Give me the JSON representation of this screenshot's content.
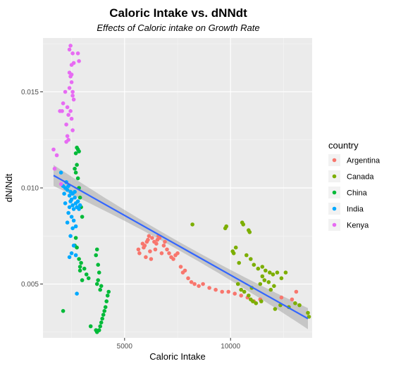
{
  "chart_data": {
    "type": "scatter",
    "title": "Caloric Intake vs. dNNdt",
    "subtitle": "Effects of Caloric intake on Growth Rate",
    "xlabel": "Caloric Intake",
    "ylabel": "dN/Ndt",
    "xlim": [
      1150,
      13850
    ],
    "ylim": [
      0.0022,
      0.0178
    ],
    "x_ticks": [
      5000,
      10000
    ],
    "x_tick_labels": [
      "5000",
      "10000"
    ],
    "y_ticks": [
      0.005,
      0.01,
      0.015
    ],
    "y_tick_labels": [
      "0.005",
      "0.010",
      "0.015"
    ],
    "grid": true,
    "legend": {
      "title": "country",
      "position": "right"
    },
    "trend_line": {
      "color": "#3366FF",
      "band_color": "#999999",
      "points": [
        [
          1650,
          0.01065
        ],
        [
          13650,
          0.0032
        ]
      ],
      "band_half_width_ends": 0.00055,
      "band_half_width_middle": 0.00022
    },
    "series": [
      {
        "name": "Argentina",
        "color": "#F8766D",
        "points": [
          [
            5650,
            0.0068
          ],
          [
            5700,
            0.0066
          ],
          [
            5850,
            0.0071
          ],
          [
            5900,
            0.0069
          ],
          [
            5950,
            0.007
          ],
          [
            6000,
            0.0064
          ],
          [
            6050,
            0.0072
          ],
          [
            6100,
            0.0073
          ],
          [
            6150,
            0.0075
          ],
          [
            6200,
            0.0067
          ],
          [
            6250,
            0.0063
          ],
          [
            6300,
            0.0074
          ],
          [
            6400,
            0.0072
          ],
          [
            6450,
            0.0068
          ],
          [
            6500,
            0.0071
          ],
          [
            6550,
            0.0073
          ],
          [
            6600,
            0.0075
          ],
          [
            6650,
            0.0074
          ],
          [
            6750,
            0.0066
          ],
          [
            6850,
            0.007
          ],
          [
            6900,
            0.0072
          ],
          [
            7000,
            0.0068
          ],
          [
            7100,
            0.0066
          ],
          [
            7200,
            0.0064
          ],
          [
            7300,
            0.0063
          ],
          [
            7400,
            0.0065
          ],
          [
            7500,
            0.0066
          ],
          [
            7650,
            0.0059
          ],
          [
            7750,
            0.0056
          ],
          [
            7850,
            0.0057
          ],
          [
            8000,
            0.0053
          ],
          [
            8150,
            0.0051
          ],
          [
            8300,
            0.005
          ],
          [
            8500,
            0.0049
          ],
          [
            8700,
            0.005
          ],
          [
            9000,
            0.0048
          ],
          [
            9300,
            0.0047
          ],
          [
            9600,
            0.0046
          ],
          [
            9900,
            0.0046
          ],
          [
            10200,
            0.0045
          ],
          [
            10500,
            0.0044
          ],
          [
            10800,
            0.0043
          ],
          [
            11100,
            0.0041
          ],
          [
            11400,
            0.0042
          ],
          [
            12400,
            0.0043
          ],
          [
            12900,
            0.0042
          ],
          [
            13100,
            0.0046
          ]
        ]
      },
      {
        "name": "Canada",
        "color": "#7CAE00",
        "points": [
          [
            8200,
            0.0081
          ],
          [
            9750,
            0.0079
          ],
          [
            9800,
            0.008
          ],
          [
            10550,
            0.0082
          ],
          [
            10600,
            0.0081
          ],
          [
            10850,
            0.0078
          ],
          [
            10900,
            0.0077
          ],
          [
            10250,
            0.0069
          ],
          [
            10100,
            0.0067
          ],
          [
            10150,
            0.0066
          ],
          [
            10400,
            0.0061
          ],
          [
            10750,
            0.0065
          ],
          [
            10950,
            0.0063
          ],
          [
            11100,
            0.006
          ],
          [
            11300,
            0.0058
          ],
          [
            11500,
            0.0059
          ],
          [
            11650,
            0.0057
          ],
          [
            11850,
            0.0056
          ],
          [
            12000,
            0.0055
          ],
          [
            12200,
            0.0056
          ],
          [
            12400,
            0.0053
          ],
          [
            12600,
            0.0056
          ],
          [
            11500,
            0.0054
          ],
          [
            11600,
            0.0052
          ],
          [
            11800,
            0.0051
          ],
          [
            12050,
            0.0049
          ],
          [
            10950,
            0.0042
          ],
          [
            11050,
            0.0041
          ],
          [
            11200,
            0.004
          ],
          [
            11450,
            0.0041
          ],
          [
            12100,
            0.0037
          ],
          [
            12350,
            0.0039
          ],
          [
            12750,
            0.0038
          ],
          [
            13050,
            0.004
          ],
          [
            13250,
            0.0039
          ],
          [
            13650,
            0.0035
          ],
          [
            13700,
            0.0033
          ],
          [
            11000,
            0.0048
          ],
          [
            11400,
            0.005
          ],
          [
            10350,
            0.005
          ],
          [
            10500,
            0.0047
          ],
          [
            10650,
            0.0046
          ],
          [
            10850,
            0.0044
          ],
          [
            11900,
            0.0047
          ]
        ]
      },
      {
        "name": "China",
        "color": "#00BA38",
        "points": [
          [
            2100,
            0.0036
          ],
          [
            2700,
            0.0118
          ],
          [
            2750,
            0.0121
          ],
          [
            2800,
            0.012
          ],
          [
            2850,
            0.0119
          ],
          [
            2650,
            0.011
          ],
          [
            2700,
            0.0108
          ],
          [
            2750,
            0.0112
          ],
          [
            2800,
            0.0105
          ],
          [
            2850,
            0.01
          ],
          [
            2900,
            0.0095
          ],
          [
            2950,
            0.009
          ],
          [
            3000,
            0.0085
          ],
          [
            2650,
            0.007
          ],
          [
            2700,
            0.0074
          ],
          [
            2750,
            0.0069
          ],
          [
            2850,
            0.0063
          ],
          [
            2900,
            0.0059
          ],
          [
            2950,
            0.0061
          ],
          [
            3100,
            0.0058
          ],
          [
            3200,
            0.0055
          ],
          [
            3300,
            0.0053
          ],
          [
            3000,
            0.0052
          ],
          [
            2900,
            0.0057
          ],
          [
            3400,
            0.0028
          ],
          [
            3650,
            0.0026
          ],
          [
            3700,
            0.0025
          ],
          [
            3800,
            0.0026
          ],
          [
            3850,
            0.0028
          ],
          [
            3900,
            0.003
          ],
          [
            3950,
            0.0032
          ],
          [
            4000,
            0.0034
          ],
          [
            4050,
            0.0036
          ],
          [
            4100,
            0.0038
          ],
          [
            4150,
            0.0041
          ],
          [
            4200,
            0.0044
          ],
          [
            4250,
            0.0046
          ],
          [
            3700,
            0.005
          ],
          [
            3750,
            0.0052
          ],
          [
            3800,
            0.0056
          ],
          [
            3750,
            0.006
          ],
          [
            3650,
            0.0065
          ],
          [
            3700,
            0.0068
          ],
          [
            3850,
            0.0047
          ],
          [
            3900,
            0.0049
          ]
        ]
      },
      {
        "name": "India",
        "color": "#00A9FF",
        "points": [
          [
            2000,
            0.0108
          ],
          [
            2100,
            0.0101
          ],
          [
            2150,
            0.0097
          ],
          [
            2200,
            0.01
          ],
          [
            2250,
            0.0103
          ],
          [
            2300,
            0.0099
          ],
          [
            2350,
            0.0101
          ],
          [
            2400,
            0.0096
          ],
          [
            2450,
            0.0093
          ],
          [
            2500,
            0.0094
          ],
          [
            2550,
            0.0091
          ],
          [
            2600,
            0.0089
          ],
          [
            2650,
            0.0095
          ],
          [
            2700,
            0.0092
          ],
          [
            2750,
            0.009
          ],
          [
            2800,
            0.0093
          ],
          [
            2850,
            0.0089
          ],
          [
            2900,
            0.0091
          ],
          [
            2400,
            0.009
          ],
          [
            2350,
            0.0087
          ],
          [
            2500,
            0.0085
          ],
          [
            2600,
            0.0083
          ],
          [
            2550,
            0.0079
          ],
          [
            2300,
            0.0082
          ],
          [
            2700,
            0.008
          ],
          [
            2450,
            0.0075
          ],
          [
            2500,
            0.0066
          ],
          [
            2600,
            0.007
          ],
          [
            2400,
            0.0064
          ],
          [
            2700,
            0.0065
          ],
          [
            2750,
            0.0045
          ],
          [
            2200,
            0.0092
          ],
          [
            2650,
            0.0098
          ],
          [
            2550,
            0.0097
          ],
          [
            2450,
            0.0098
          ]
        ]
      },
      {
        "name": "Kenya",
        "color": "#E76BF3",
        "points": [
          [
            1650,
            0.012
          ],
          [
            1800,
            0.0117
          ],
          [
            1700,
            0.011
          ],
          [
            2000,
            0.0102
          ],
          [
            1950,
            0.014
          ],
          [
            2050,
            0.014
          ],
          [
            2100,
            0.0144
          ],
          [
            2200,
            0.015
          ],
          [
            2250,
            0.0133
          ],
          [
            2300,
            0.0142
          ],
          [
            2350,
            0.0138
          ],
          [
            2400,
            0.0152
          ],
          [
            2450,
            0.0158
          ],
          [
            2500,
            0.0164
          ],
          [
            2400,
            0.0172
          ],
          [
            2450,
            0.0174
          ],
          [
            2550,
            0.017
          ],
          [
            2600,
            0.0165
          ],
          [
            2500,
            0.0159
          ],
          [
            2550,
            0.015
          ],
          [
            2600,
            0.0146
          ],
          [
            2450,
            0.014
          ],
          [
            2500,
            0.0136
          ],
          [
            2550,
            0.013
          ],
          [
            2300,
            0.0127
          ],
          [
            2250,
            0.0124
          ],
          [
            2350,
            0.0125
          ],
          [
            2800,
            0.017
          ],
          [
            2850,
            0.0166
          ],
          [
            2400,
            0.016
          ],
          [
            2500,
            0.0155
          ],
          [
            2550,
            0.0148
          ]
        ]
      }
    ]
  }
}
